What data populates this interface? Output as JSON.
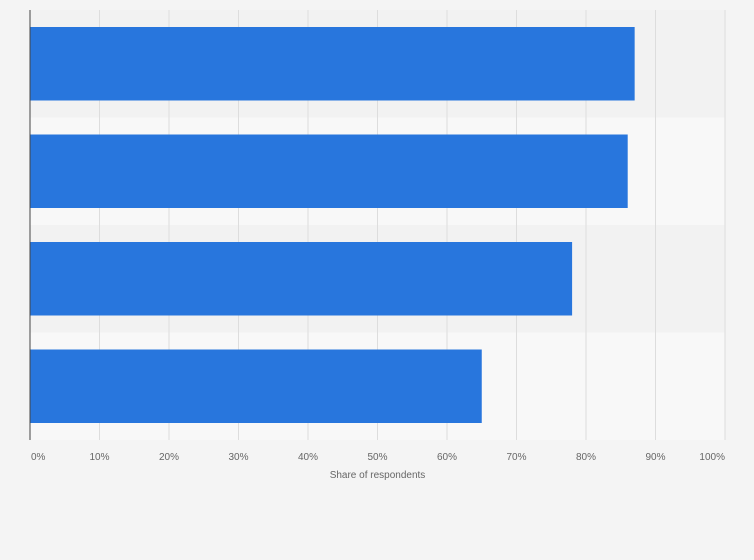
{
  "chart_data": {
    "type": "bar",
    "orientation": "horizontal",
    "categories": [
      "",
      "",
      "",
      ""
    ],
    "values": [
      87,
      86,
      78,
      65
    ],
    "title": "",
    "xlabel": "Share of respondents",
    "ylabel": "",
    "xlim": [
      0,
      100
    ],
    "x_ticks": [
      "0%",
      "10%",
      "20%",
      "30%",
      "40%",
      "50%",
      "60%",
      "70%",
      "80%",
      "90%",
      "100%"
    ],
    "grid": "vertical",
    "legend": "none",
    "colors": {
      "bar": "#2876dd",
      "band_dark": "#f2f2f2",
      "band_light": "#f8f8f8",
      "grid": "#dddddd",
      "axis": "#444444",
      "text": "#666666",
      "background": "#f4f4f4"
    }
  }
}
